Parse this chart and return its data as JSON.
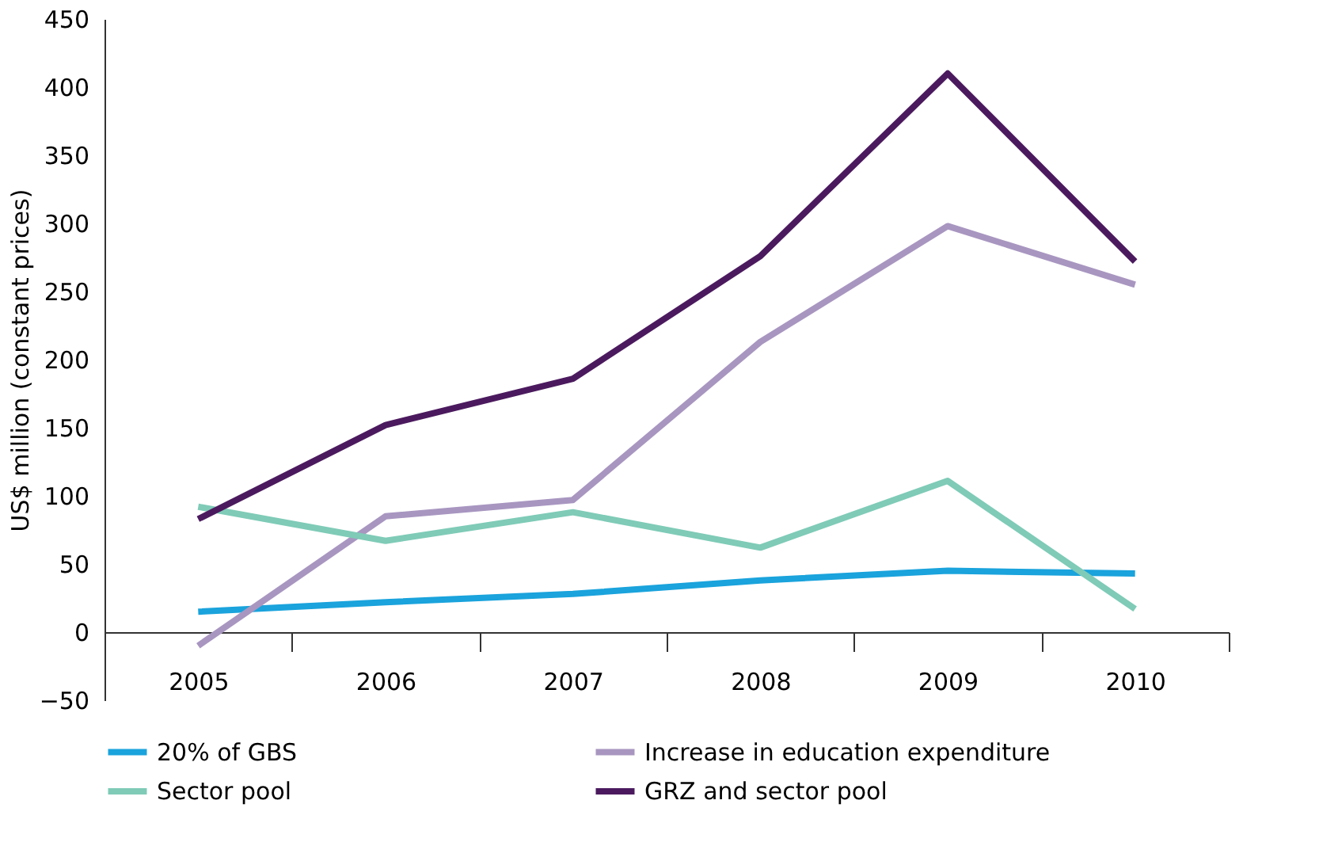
{
  "chart_data": {
    "type": "line",
    "ylabel": "US$ million (constant prices)",
    "categories": [
      "2005",
      "2006",
      "2007",
      "2008",
      "2009",
      "2010"
    ],
    "series": [
      {
        "name": "20% of GBS",
        "color": "#1aa3dc",
        "values": [
          15,
          22,
          28,
          38,
          45,
          43
        ]
      },
      {
        "name": "Increase in education expenditure",
        "color": "#a896c0",
        "values": [
          -10,
          85,
          97,
          213,
          298,
          255
        ]
      },
      {
        "name": "Sector pool",
        "color": "#7fcbb7",
        "values": [
          92,
          67,
          88,
          62,
          111,
          17
        ]
      },
      {
        "name": "GRZ and sector pool",
        "color": "#4b1a5e",
        "values": [
          83,
          152,
          186,
          276,
          410,
          272
        ]
      }
    ],
    "ylim": [
      -50,
      450
    ],
    "yticks": [
      -50,
      0,
      50,
      100,
      150,
      200,
      250,
      300,
      350,
      400,
      450
    ],
    "grid": false,
    "legend": "bottom",
    "marker": "none",
    "line_style": "solid"
  }
}
